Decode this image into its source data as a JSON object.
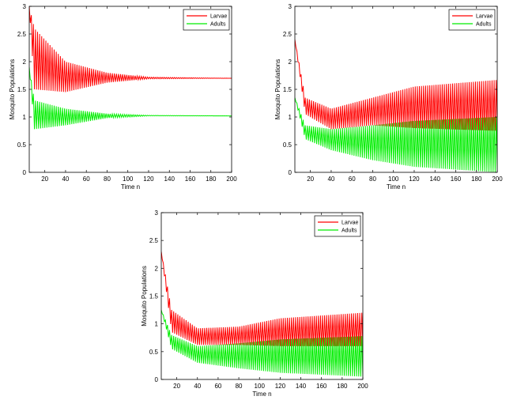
{
  "chart_data": [
    {
      "type": "line",
      "title": "",
      "xlabel": "Time n",
      "ylabel": "Mosquito Populations",
      "xlim": [
        5,
        200
      ],
      "ylim": [
        0,
        3
      ],
      "xticks": [
        "20",
        "40",
        "60",
        "80",
        "100",
        "120",
        "140",
        "160",
        "180",
        "200"
      ],
      "yticks": [
        "0",
        "0.5",
        "1",
        "1.5",
        "2",
        "2.5",
        "3"
      ],
      "legend_position": "top-right",
      "series": [
        {
          "name": "Larvae",
          "color": "#ff0000",
          "start": 3.0,
          "envelope_low": [
            [
              5,
              3.0
            ],
            [
              10,
              1.5
            ],
            [
              40,
              1.45
            ],
            [
              80,
              1.62
            ],
            [
              120,
              1.69
            ],
            [
              200,
              1.7
            ]
          ],
          "envelope_high": [
            [
              5,
              3.0
            ],
            [
              10,
              2.6
            ],
            [
              40,
              2.0
            ],
            [
              80,
              1.8
            ],
            [
              120,
              1.72
            ],
            [
              200,
              1.7
            ]
          ],
          "equilibrium": 1.7
        },
        {
          "name": "Adults",
          "color": "#00ee00",
          "start": 1.9,
          "envelope_low": [
            [
              5,
              1.9
            ],
            [
              10,
              0.78
            ],
            [
              40,
              0.85
            ],
            [
              80,
              0.98
            ],
            [
              120,
              1.02
            ],
            [
              200,
              1.02
            ]
          ],
          "envelope_high": [
            [
              5,
              1.9
            ],
            [
              10,
              1.3
            ],
            [
              40,
              1.15
            ],
            [
              80,
              1.06
            ],
            [
              120,
              1.03
            ],
            [
              200,
              1.02
            ]
          ],
          "equilibrium": 1.02
        }
      ]
    },
    {
      "type": "line",
      "title": "",
      "xlabel": "Time n",
      "ylabel": "Mosquito Populations",
      "xlim": [
        5,
        200
      ],
      "ylim": [
        0,
        3
      ],
      "xticks": [
        "20",
        "40",
        "60",
        "80",
        "100",
        "120",
        "140",
        "160",
        "180",
        "200"
      ],
      "yticks": [
        "0",
        "0.5",
        "1",
        "1.5",
        "2",
        "2.5",
        "3"
      ],
      "legend_position": "top-right",
      "series": [
        {
          "name": "Larvae",
          "color": "#ff0000",
          "start": 2.4,
          "envelope_low": [
            [
              5,
              2.4
            ],
            [
              15,
              1.05
            ],
            [
              40,
              0.78
            ],
            [
              80,
              0.85
            ],
            [
              120,
              0.8
            ],
            [
              200,
              0.75
            ]
          ],
          "envelope_high": [
            [
              5,
              2.4
            ],
            [
              15,
              1.35
            ],
            [
              40,
              1.15
            ],
            [
              80,
              1.35
            ],
            [
              120,
              1.55
            ],
            [
              200,
              1.67
            ]
          ],
          "equilibrium": null
        },
        {
          "name": "Adults",
          "color": "#00ee00",
          "start": 1.35,
          "envelope_low": [
            [
              5,
              1.35
            ],
            [
              15,
              0.6
            ],
            [
              40,
              0.4
            ],
            [
              80,
              0.22
            ],
            [
              120,
              0.1
            ],
            [
              200,
              0.0
            ]
          ],
          "envelope_high": [
            [
              5,
              1.35
            ],
            [
              15,
              0.85
            ],
            [
              40,
              0.78
            ],
            [
              80,
              0.85
            ],
            [
              120,
              0.93
            ],
            [
              200,
              1.0
            ]
          ],
          "equilibrium": null
        }
      ]
    },
    {
      "type": "line",
      "title": "",
      "xlabel": "Time n",
      "ylabel": "Mosquito Populations",
      "xlim": [
        5,
        200
      ],
      "ylim": [
        0,
        3
      ],
      "xticks": [
        "20",
        "40",
        "60",
        "80",
        "100",
        "120",
        "140",
        "160",
        "180",
        "200"
      ],
      "yticks": [
        "0",
        "0.5",
        "1",
        "1.5",
        "2",
        "2.5",
        "3"
      ],
      "legend_position": "top-right",
      "series": [
        {
          "name": "Larvae",
          "color": "#ff0000",
          "start": 2.3,
          "envelope_low": [
            [
              5,
              2.3
            ],
            [
              15,
              0.85
            ],
            [
              40,
              0.62
            ],
            [
              80,
              0.62
            ],
            [
              120,
              0.6
            ],
            [
              200,
              0.6
            ]
          ],
          "envelope_high": [
            [
              5,
              2.3
            ],
            [
              15,
              1.25
            ],
            [
              40,
              0.92
            ],
            [
              80,
              0.95
            ],
            [
              120,
              1.1
            ],
            [
              200,
              1.2
            ]
          ],
          "equilibrium": null
        },
        {
          "name": "Adults",
          "color": "#00ee00",
          "start": 1.25,
          "envelope_low": [
            [
              5,
              1.25
            ],
            [
              15,
              0.55
            ],
            [
              40,
              0.3
            ],
            [
              80,
              0.2
            ],
            [
              120,
              0.12
            ],
            [
              200,
              0.05
            ]
          ],
          "envelope_high": [
            [
              5,
              1.25
            ],
            [
              15,
              0.8
            ],
            [
              40,
              0.6
            ],
            [
              80,
              0.65
            ],
            [
              120,
              0.72
            ],
            [
              200,
              0.78
            ]
          ],
          "equilibrium": null
        }
      ]
    }
  ]
}
